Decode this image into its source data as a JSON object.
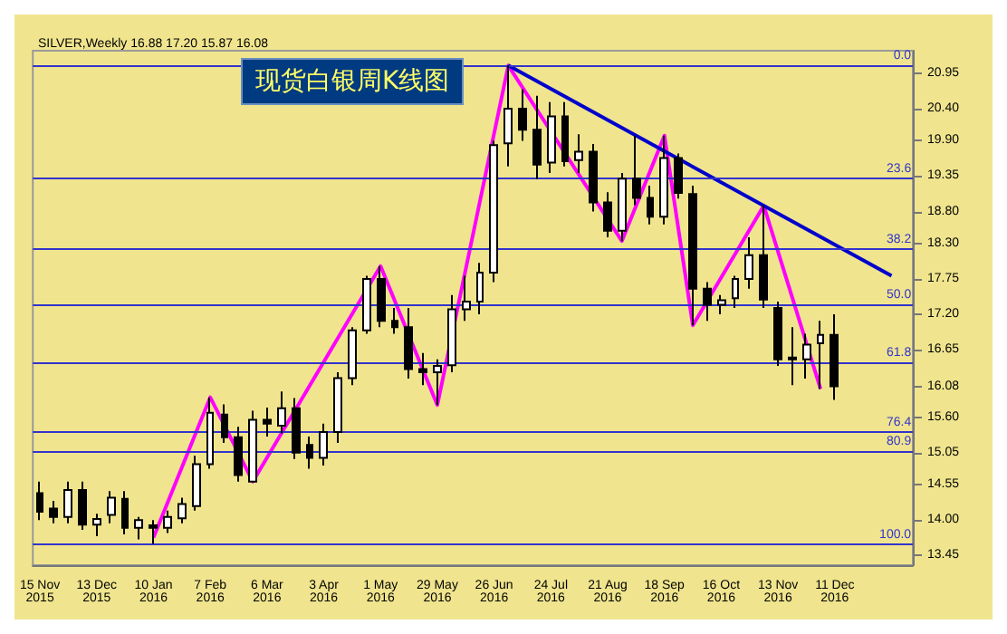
{
  "chart_data": {
    "type": "candlestick",
    "title": "现货白银周K线图",
    "subtitle": "SILVER,Weekly 16.88 17.20 15.87 16.08",
    "categories": [
      "15 Nov 2015",
      null,
      null,
      null,
      "13 Dec 2015",
      null,
      null,
      null,
      "10 Jan 2016",
      null,
      null,
      null,
      "7 Feb 2016",
      null,
      null,
      null,
      "6 Mar 2016",
      null,
      null,
      null,
      "3 Apr 2016",
      null,
      null,
      null,
      "1 May 2016",
      null,
      null,
      null,
      "29 May 2016",
      null,
      null,
      null,
      "26 Jun 2016",
      null,
      null,
      null,
      "24 Jul 2016",
      null,
      null,
      null,
      "21 Aug 2016",
      null,
      null,
      null,
      "18 Sep 2016",
      null,
      null,
      null,
      "16 Oct 2016",
      null,
      null,
      null,
      "13 Nov 2016",
      null,
      null,
      null,
      "11 Dec 2016",
      null,
      null,
      null,
      null,
      null
    ],
    "ohlc": [
      [
        14.42,
        14.6,
        14.0,
        14.13
      ],
      [
        14.18,
        14.3,
        13.95,
        14.05
      ],
      [
        14.05,
        14.6,
        13.95,
        14.47
      ],
      [
        14.47,
        14.6,
        13.85,
        13.93
      ],
      [
        13.93,
        14.1,
        13.75,
        14.02
      ],
      [
        14.08,
        14.45,
        13.95,
        14.35
      ],
      [
        14.33,
        14.45,
        13.78,
        13.88
      ],
      [
        13.88,
        14.05,
        13.7,
        14.0
      ],
      [
        13.92,
        14.0,
        13.63,
        13.88
      ],
      [
        13.88,
        14.15,
        13.8,
        14.05
      ],
      [
        14.03,
        14.35,
        13.95,
        14.25
      ],
      [
        14.22,
        15.0,
        14.15,
        14.87
      ],
      [
        14.87,
        15.91,
        14.8,
        15.67
      ],
      [
        15.64,
        15.8,
        15.2,
        15.29
      ],
      [
        15.29,
        15.45,
        14.6,
        14.7
      ],
      [
        14.6,
        15.7,
        14.6,
        15.56
      ],
      [
        15.56,
        15.75,
        15.3,
        15.5
      ],
      [
        15.47,
        16.0,
        15.35,
        15.74
      ],
      [
        15.74,
        15.9,
        14.95,
        15.05
      ],
      [
        15.17,
        15.3,
        14.8,
        14.97
      ],
      [
        14.97,
        15.5,
        14.85,
        15.37
      ],
      [
        15.37,
        16.3,
        15.2,
        16.21
      ],
      [
        16.21,
        17.0,
        16.1,
        16.95
      ],
      [
        16.95,
        17.8,
        16.9,
        17.75
      ],
      [
        17.75,
        17.95,
        17.0,
        17.1
      ],
      [
        17.1,
        17.3,
        16.9,
        17.0
      ],
      [
        17.0,
        17.3,
        16.2,
        16.35
      ],
      [
        16.35,
        16.6,
        16.1,
        16.3
      ],
      [
        16.3,
        16.5,
        15.79,
        16.4
      ],
      [
        16.41,
        17.5,
        16.3,
        17.28
      ],
      [
        17.28,
        17.8,
        17.1,
        17.4
      ],
      [
        17.4,
        18.0,
        17.2,
        17.85
      ],
      [
        17.85,
        19.9,
        17.7,
        19.83
      ],
      [
        19.86,
        21.07,
        19.5,
        20.4
      ],
      [
        20.4,
        20.7,
        19.9,
        20.07
      ],
      [
        20.07,
        20.6,
        19.3,
        19.53
      ],
      [
        19.56,
        20.5,
        19.4,
        20.28
      ],
      [
        20.28,
        20.5,
        19.5,
        19.58
      ],
      [
        19.6,
        20.0,
        19.4,
        19.73
      ],
      [
        19.73,
        19.85,
        18.8,
        18.94
      ],
      [
        18.94,
        19.1,
        18.4,
        18.5
      ],
      [
        18.5,
        19.4,
        18.34,
        19.31
      ],
      [
        19.31,
        19.98,
        18.9,
        19.01
      ],
      [
        19.01,
        19.2,
        18.6,
        18.72
      ],
      [
        18.72,
        19.98,
        18.6,
        19.63
      ],
      [
        19.63,
        19.7,
        19.0,
        19.09
      ],
      [
        19.07,
        19.2,
        17.03,
        17.6
      ],
      [
        17.6,
        17.7,
        17.1,
        17.35
      ],
      [
        17.35,
        17.5,
        17.2,
        17.42
      ],
      [
        17.45,
        17.8,
        17.3,
        17.75
      ],
      [
        17.75,
        18.4,
        17.6,
        18.12
      ],
      [
        18.12,
        18.89,
        17.3,
        17.43
      ],
      [
        17.3,
        17.4,
        16.4,
        16.5
      ],
      [
        16.53,
        17.0,
        16.1,
        16.5
      ],
      [
        16.5,
        16.9,
        16.2,
        16.73
      ],
      [
        16.75,
        17.1,
        16.04,
        16.88
      ],
      [
        16.88,
        17.2,
        15.87,
        16.08
      ],
      null,
      null,
      null,
      null,
      null
    ],
    "series": [
      {
        "type": "line",
        "color": "#ff00ff",
        "values": [
          null,
          null,
          null,
          null,
          null,
          null,
          null,
          null,
          13.73,
          null,
          null,
          null,
          15.91,
          null,
          null,
          14.6,
          null,
          null,
          null,
          null,
          null,
          null,
          null,
          null,
          17.95,
          null,
          null,
          null,
          15.79,
          null,
          null,
          null,
          null,
          21.07,
          null,
          null,
          null,
          null,
          null,
          null,
          null,
          18.34,
          null,
          null,
          19.98,
          null,
          17.03,
          null,
          null,
          null,
          null,
          18.89,
          null,
          null,
          null,
          16.04,
          null,
          null,
          null,
          null,
          null,
          null
        ]
      },
      {
        "type": "line",
        "color": "#0000cc",
        "values": [
          null,
          null,
          null,
          null,
          null,
          null,
          null,
          null,
          null,
          null,
          null,
          null,
          null,
          null,
          null,
          null,
          null,
          null,
          null,
          null,
          null,
          null,
          null,
          null,
          null,
          null,
          null,
          null,
          null,
          null,
          null,
          null,
          null,
          21.07,
          null,
          null,
          null,
          null,
          null,
          null,
          null,
          null,
          null,
          null,
          null,
          null,
          null,
          null,
          null,
          null,
          null,
          null,
          null,
          null,
          null,
          null,
          null,
          null,
          null,
          null,
          17.8,
          null
        ]
      }
    ],
    "ylim": [
      13.3,
      21.3
    ],
    "yticks": [
      {
        "value": 20.95,
        "label": "20.95"
      },
      {
        "value": 20.4,
        "label": "20.40"
      },
      {
        "value": 19.9,
        "label": "19.90"
      },
      {
        "value": 19.35,
        "label": "19.35"
      },
      {
        "value": 18.8,
        "label": "18.80"
      },
      {
        "value": 18.3,
        "label": "18.30"
      },
      {
        "value": 17.75,
        "label": "17.75"
      },
      {
        "value": 17.2,
        "label": "17.20"
      },
      {
        "value": 16.65,
        "label": "16.65"
      },
      {
        "value": 16.08,
        "label": "16.08"
      },
      {
        "value": 15.6,
        "label": "15.60"
      },
      {
        "value": 15.05,
        "label": "15.05"
      },
      {
        "value": 14.55,
        "label": "14.55"
      },
      {
        "value": 14.0,
        "label": "14.00"
      },
      {
        "value": 13.45,
        "label": "13.45"
      }
    ],
    "ref_lines": [
      {
        "axis": "y",
        "value": 21.07,
        "color": "#3333cc"
      },
      {
        "axis": "y",
        "value": 19.31,
        "color": "#3333cc"
      },
      {
        "axis": "y",
        "value": 18.22,
        "color": "#3333cc"
      },
      {
        "axis": "y",
        "value": 17.35,
        "color": "#3333cc"
      },
      {
        "axis": "y",
        "value": 16.45,
        "color": "#3333cc"
      },
      {
        "axis": "y",
        "value": 15.37,
        "color": "#3333cc"
      },
      {
        "axis": "y",
        "value": 15.07,
        "color": "#3333cc"
      },
      {
        "axis": "y",
        "value": 13.63,
        "color": "#3333cc"
      }
    ],
    "annotations": [
      {
        "text": "0.0",
        "y": 21.07
      },
      {
        "text": "23.6",
        "y": 19.31
      },
      {
        "text": "38.2",
        "y": 18.22
      },
      {
        "text": "50.0",
        "y": 17.35
      },
      {
        "text": "61.8",
        "y": 16.45
      },
      {
        "text": "76.4",
        "y": 15.37
      },
      {
        "text": "80.9",
        "y": 15.07
      },
      {
        "text": "100.0",
        "y": 13.63
      }
    ],
    "grid": false
  }
}
